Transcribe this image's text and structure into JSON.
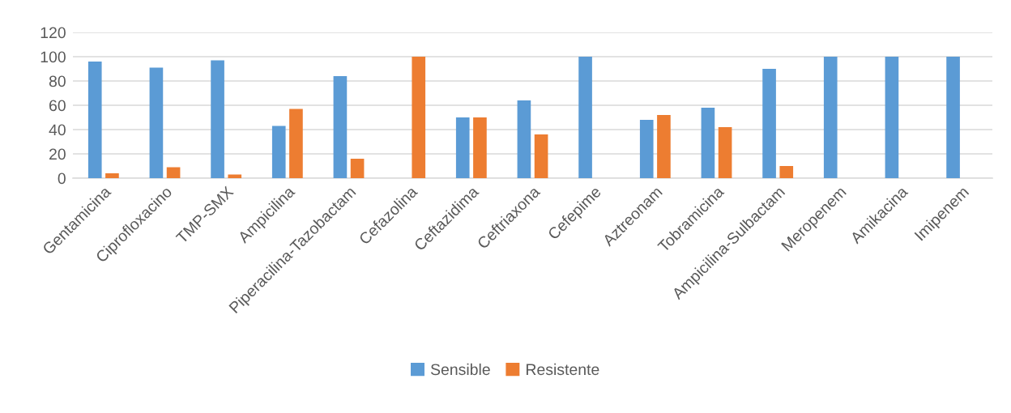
{
  "chart_data": {
    "type": "bar",
    "categories": [
      "Gentamicina",
      "Ciprofloxacino",
      "TMP-SMX",
      "Ampicilina",
      "Piperacilina-Tazobactam",
      "Cefazolina",
      "Ceftazidima",
      "Ceftriaxona",
      "Cefepime",
      "Aztreonam",
      "Tobramicina",
      "Ampicilina-Sulbactam",
      "Meropenem",
      "Amikacina",
      "Imipenem"
    ],
    "series": [
      {
        "name": "Sensible",
        "color": "#5b9bd5",
        "values": [
          96,
          91,
          97,
          43,
          84,
          0,
          50,
          64,
          100,
          48,
          58,
          90,
          100,
          100,
          100
        ]
      },
      {
        "name": "Resistente",
        "color": "#ed7d31",
        "values": [
          4,
          9,
          3,
          57,
          16,
          100,
          50,
          36,
          0,
          52,
          42,
          10,
          0,
          0,
          0
        ]
      }
    ],
    "ylim": [
      0,
      120
    ],
    "yticks": [
      0,
      20,
      40,
      60,
      80,
      100,
      120
    ],
    "grid": "y",
    "legend": "bottom"
  }
}
